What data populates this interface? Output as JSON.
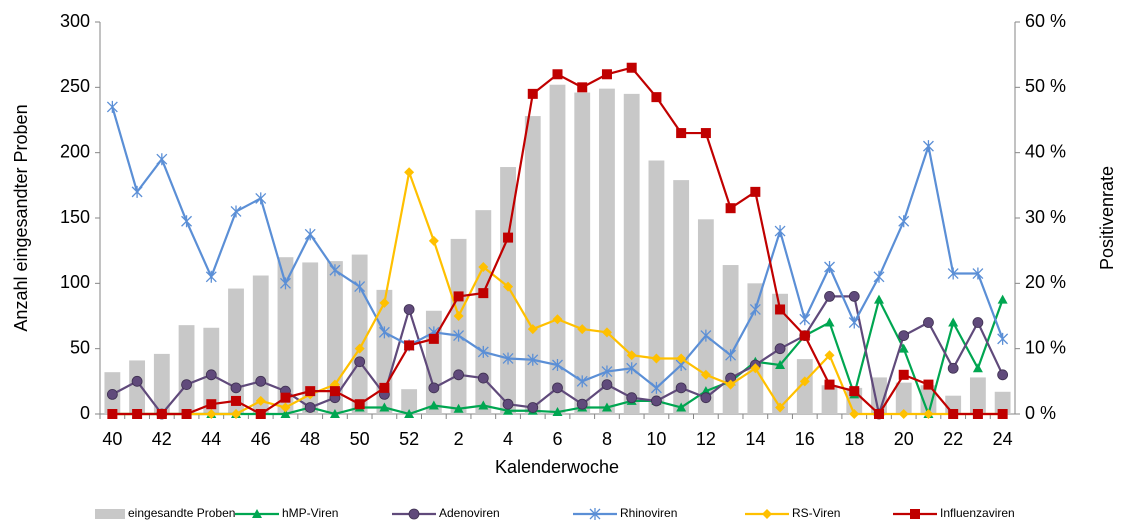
{
  "chart_data": {
    "type": "bar-line",
    "x_label": "Kalenderwoche",
    "y_label": "Anzahl eingesandter Proben",
    "y2_label": "Positivenrate",
    "categories": [
      "40",
      null,
      "42",
      null,
      "44",
      null,
      "46",
      null,
      "48",
      null,
      "50",
      null,
      "52",
      null,
      "2",
      null,
      "4",
      null,
      "6",
      null,
      "8",
      null,
      "10",
      null,
      "12",
      null,
      "14",
      null,
      "16",
      null,
      "18",
      null,
      "20",
      null,
      "22",
      null,
      "24"
    ],
    "ylim": [
      0,
      300
    ],
    "yticks": [
      0,
      50,
      100,
      150,
      200,
      250,
      300
    ],
    "y2lim": [
      0,
      60
    ],
    "y2ticks": [
      {
        "value": 0,
        "label": "0 %"
      },
      {
        "value": 10,
        "label": "10 %"
      },
      {
        "value": 20,
        "label": "20 %"
      },
      {
        "value": 30,
        "label": "30 %"
      },
      {
        "value": 40,
        "label": "40 %"
      },
      {
        "value": 50,
        "label": "50 %"
      },
      {
        "value": 60,
        "label": "60 %"
      }
    ],
    "series": [
      {
        "name": "eingesandte Proben",
        "type": "bar",
        "color": "#c8c8c8",
        "values": [
          32,
          41,
          46,
          68,
          66,
          96,
          106,
          120,
          116,
          117,
          122,
          95,
          19,
          79,
          134,
          156,
          189,
          228,
          252,
          246,
          249,
          245,
          194,
          179,
          149,
          114,
          100,
          92,
          42,
          22,
          20,
          28,
          24,
          22,
          14,
          28,
          17
        ]
      },
      {
        "name": "hMP-Viren",
        "type": "line",
        "axis": "y2",
        "color": "#00a651",
        "marker": "triangle",
        "values": [
          0,
          0,
          0,
          0,
          0,
          0,
          0,
          0,
          1,
          0,
          1,
          1,
          0,
          1.3,
          0.8,
          1.3,
          0.5,
          0.5,
          0.3,
          1,
          1,
          2,
          2,
          1,
          3.5,
          5,
          8,
          7.5,
          12,
          14,
          3,
          17.5,
          10,
          0,
          14,
          7,
          17.5
        ]
      },
      {
        "name": "Adenoviren",
        "type": "line",
        "axis": "y2",
        "color": "#604a7b",
        "marker": "circle",
        "values": [
          3,
          5,
          0,
          4.5,
          6,
          4,
          5,
          3.5,
          1,
          2.5,
          8,
          3,
          16,
          4,
          6,
          5.5,
          1.5,
          1,
          4,
          1.5,
          4.5,
          2.5,
          2,
          4,
          2.5,
          5.5,
          7.5,
          10,
          12,
          18,
          18,
          0,
          12,
          14,
          7,
          14,
          6
        ]
      },
      {
        "name": "Rhinoviren",
        "type": "line",
        "axis": "y2",
        "color": "#5b8fd6",
        "marker": "star",
        "values": [
          47,
          34,
          39,
          29.5,
          21,
          31,
          33,
          20,
          27.5,
          22,
          19.5,
          12.5,
          10.5,
          12.5,
          12,
          9.5,
          8.5,
          8.3,
          7.5,
          5,
          6.5,
          7,
          4,
          7.5,
          12,
          9,
          16,
          28,
          14.5,
          22.5,
          14,
          21,
          29.5,
          41,
          21.5,
          21.5,
          11.5
        ]
      },
      {
        "name": "RS-Viren",
        "type": "line",
        "axis": "y2",
        "color": "#ffc000",
        "marker": "diamond",
        "values": [
          0,
          0,
          0,
          0,
          0,
          0,
          2,
          1,
          3,
          4.5,
          10,
          17,
          37,
          26.5,
          15,
          22.5,
          19.5,
          13,
          14.5,
          13,
          12.5,
          9,
          8.5,
          8.5,
          6,
          4.5,
          7,
          1,
          5,
          9,
          0,
          0,
          0,
          0,
          0,
          0,
          0
        ]
      },
      {
        "name": "Influenzaviren",
        "type": "line",
        "axis": "y2",
        "color": "#c00000",
        "marker": "square",
        "values": [
          0,
          0,
          0,
          0,
          1.5,
          2,
          0,
          2.5,
          3.5,
          3.5,
          1.5,
          4,
          10.5,
          11.5,
          18,
          18.5,
          27,
          49,
          52,
          50,
          52,
          53,
          48.5,
          43,
          43,
          31.5,
          34,
          16,
          12,
          4.5,
          3.5,
          0,
          6,
          4.5,
          0,
          0,
          0
        ]
      }
    ]
  }
}
